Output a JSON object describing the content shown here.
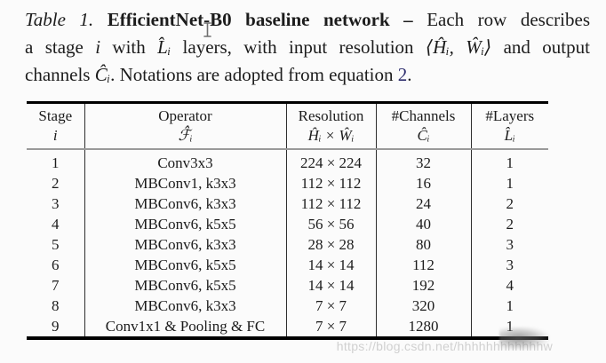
{
  "colors": {
    "background": "#fbfbfb",
    "text": "#1c1c1c",
    "link": "#2e2e6e",
    "rule": "#000000",
    "midrule": "#9a9a9a",
    "watermark": "#c9c9c9"
  },
  "caption": {
    "lines": [
      {
        "segments": [
          {
            "text": "Table 1. ",
            "style": "italic"
          },
          {
            "text": "EfficientNet-B0 baseline network – ",
            "style": "bold"
          },
          {
            "text": "Each row describes",
            "style": "normal"
          }
        ]
      },
      {
        "segments": [
          {
            "text": "a stage ",
            "style": "normal"
          },
          {
            "text": "i",
            "style": "math"
          },
          {
            "text": " with ",
            "style": "normal"
          },
          {
            "text": "L̂ᵢ",
            "style": "math"
          },
          {
            "text": " layers, with input resolution ",
            "style": "normal"
          },
          {
            "text": "⟨Ĥᵢ, Ŵᵢ⟩",
            "style": "math"
          },
          {
            "text": " and output",
            "style": "normal"
          }
        ]
      },
      {
        "segments": [
          {
            "text": "channels ",
            "style": "normal"
          },
          {
            "text": "Ĉᵢ",
            "style": "math"
          },
          {
            "text": ". Notations are adopted from equation ",
            "style": "normal"
          },
          {
            "text": "2",
            "style": "link"
          },
          {
            "text": ".",
            "style": "normal"
          }
        ]
      }
    ]
  },
  "table": {
    "columns": [
      {
        "label": "Stage",
        "symbol": "i"
      },
      {
        "label": "Operator",
        "symbol": "ℱ̂ᵢ"
      },
      {
        "label": "Resolution",
        "symbol": "Ĥᵢ × Ŵᵢ"
      },
      {
        "label": "#Channels",
        "symbol": "Ĉᵢ"
      },
      {
        "label": "#Layers",
        "symbol": "L̂ᵢ"
      }
    ],
    "rows": [
      [
        "1",
        "Conv3x3",
        "224 × 224",
        "32",
        "1"
      ],
      [
        "2",
        "MBConv1, k3x3",
        "112 × 112",
        "16",
        "1"
      ],
      [
        "3",
        "MBConv6, k3x3",
        "112 × 112",
        "24",
        "2"
      ],
      [
        "4",
        "MBConv6, k5x5",
        "56 × 56",
        "40",
        "2"
      ],
      [
        "5",
        "MBConv6, k3x3",
        "28 × 28",
        "80",
        "3"
      ],
      [
        "6",
        "MBConv6, k5x5",
        "14 × 14",
        "112",
        "3"
      ],
      [
        "7",
        "MBConv6, k5x5",
        "14 × 14",
        "192",
        "4"
      ],
      [
        "8",
        "MBConv6, k3x3",
        "7 × 7",
        "320",
        "1"
      ],
      [
        "9",
        "Conv1x1 & Pooling & FC",
        "7 × 7",
        "1280",
        "1"
      ]
    ]
  },
  "watermark": {
    "text": "https://blog.csdn.net/hhhhhhhhhhhhw"
  }
}
